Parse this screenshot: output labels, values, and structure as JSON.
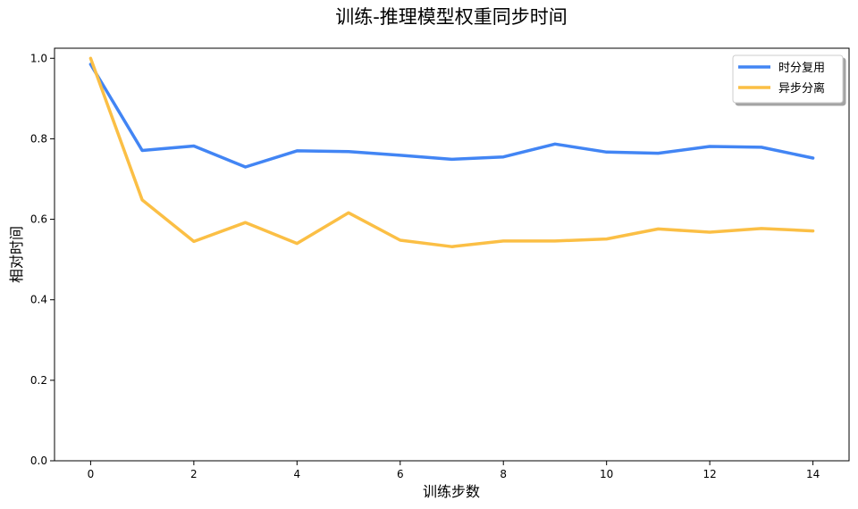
{
  "chart_data": {
    "type": "line",
    "title": "训练-推理模型权重同步时间",
    "xlabel": "训练步数",
    "ylabel": "相对时间",
    "xlim": [
      -0.7,
      14.7
    ],
    "ylim": [
      0.0,
      1.025
    ],
    "x": [
      0,
      1,
      2,
      3,
      4,
      5,
      6,
      7,
      8,
      9,
      10,
      11,
      12,
      13,
      14
    ],
    "xticks": [
      0,
      2,
      4,
      6,
      8,
      10,
      12,
      14
    ],
    "xtick_labels": [
      "0",
      "2",
      "4",
      "6",
      "8",
      "10",
      "12",
      "14"
    ],
    "yticks": [
      0.0,
      0.2,
      0.4,
      0.6,
      0.8,
      1.0
    ],
    "ytick_labels": [
      "0.0",
      "0.2",
      "0.4",
      "0.6",
      "0.8",
      "1.0"
    ],
    "grid": false,
    "legend_position": "top-right",
    "series": [
      {
        "name": "时分复用",
        "color": "#4285f4",
        "values": [
          0.985,
          0.771,
          0.782,
          0.73,
          0.77,
          0.768,
          0.759,
          0.749,
          0.755,
          0.787,
          0.767,
          0.764,
          0.781,
          0.779,
          0.752
        ]
      },
      {
        "name": "异步分离",
        "color": "#fbbf45",
        "values": [
          1.0,
          0.648,
          0.545,
          0.592,
          0.54,
          0.616,
          0.548,
          0.532,
          0.546,
          0.546,
          0.551,
          0.576,
          0.568,
          0.577,
          0.571
        ]
      }
    ]
  }
}
